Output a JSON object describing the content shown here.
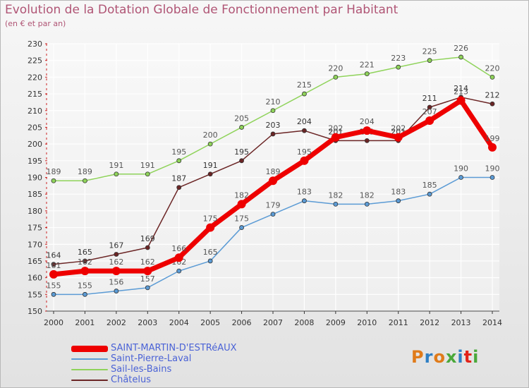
{
  "title": "Evolution de la Dotation Globale de Fonctionnement par Habitant",
  "subtitle": "(en € et par an)",
  "brand": {
    "text": "Proxiti",
    "colors": [
      "#e07b1a",
      "#2e7fc4",
      "#e07b1a",
      "#4aa83a",
      "#2e7fc4",
      "#e2231a",
      "#4aa83a"
    ]
  },
  "chart_data": {
    "type": "line",
    "title": "Evolution de la Dotation Globale de Fonctionnement par Habitant",
    "ylabel": "(en € et par an)",
    "ylim": [
      150,
      230
    ],
    "yticks": [
      "150",
      "155",
      "160",
      "165",
      "170",
      "175",
      "180",
      "185",
      "190",
      "195",
      "200",
      "205",
      "210",
      "215",
      "220",
      "225",
      "230"
    ],
    "x": [
      "2000",
      "2001",
      "2002",
      "2003",
      "2004",
      "2005",
      "2006",
      "2007",
      "2008",
      "2009",
      "2010",
      "2011",
      "2012",
      "2013",
      "2014"
    ],
    "series": [
      {
        "name": "Sail-les-Bains",
        "color": "#8fd35a",
        "labelColor": "#555555",
        "values": [
          189,
          189,
          191,
          191,
          195,
          200,
          205,
          210,
          215,
          220,
          221,
          223,
          225,
          226,
          220
        ],
        "labels": [
          "189",
          "189",
          "191",
          "191",
          "195",
          "200",
          "205",
          "210",
          "215",
          "220",
          "221",
          "223",
          "225",
          "226",
          "220"
        ]
      },
      {
        "name": "Saint-Pierre-Laval",
        "color": "#5b9bd5",
        "labelColor": "#555555",
        "values": [
          155,
          155,
          156,
          157,
          162,
          165,
          175,
          179,
          183,
          182,
          182,
          183,
          185,
          190,
          190
        ],
        "labels": [
          "155",
          "155",
          "156",
          "157",
          "162",
          "165",
          "175",
          "179",
          "183",
          "182",
          "182",
          "183",
          "185",
          "190",
          "190"
        ]
      },
      {
        "name": "Châtelus",
        "color": "#6b2525",
        "labelColor": "#333333",
        "values": [
          164,
          165,
          167,
          169,
          187,
          191,
          195,
          203,
          204,
          201,
          201,
          201,
          211,
          214,
          212
        ],
        "labels": [
          "164",
          "165",
          "167",
          "169",
          "187",
          "191",
          "195",
          "203",
          "204",
          "201",
          "201",
          "201",
          "211",
          "214",
          "212"
        ]
      },
      {
        "name": "SAINT-MARTIN-D'ESTRéAUX",
        "color": "#ee0000",
        "labelColor": "#555555",
        "values": [
          161,
          162,
          162,
          162,
          166,
          175,
          182,
          189,
          195,
          202,
          204,
          202,
          207,
          213,
          199
        ],
        "labels": [
          "161",
          "162",
          "162",
          "162",
          "166",
          "175",
          "182",
          "189",
          "195",
          "202",
          "204",
          "202",
          "207",
          "213",
          "199"
        ]
      }
    ],
    "legend": [
      {
        "name": "SAINT-MARTIN-D'ESTRéAUX",
        "color": "#ee0000",
        "textColor": "#4b63d6"
      },
      {
        "name": "Saint-Pierre-Laval",
        "color": "#5b9bd5",
        "textColor": "#4b63d6"
      },
      {
        "name": "Sail-les-Bains",
        "color": "#8fd35a",
        "textColor": "#4b63d6"
      },
      {
        "name": "Châtelus",
        "color": "#6b2525",
        "textColor": "#4b63d6"
      }
    ]
  }
}
